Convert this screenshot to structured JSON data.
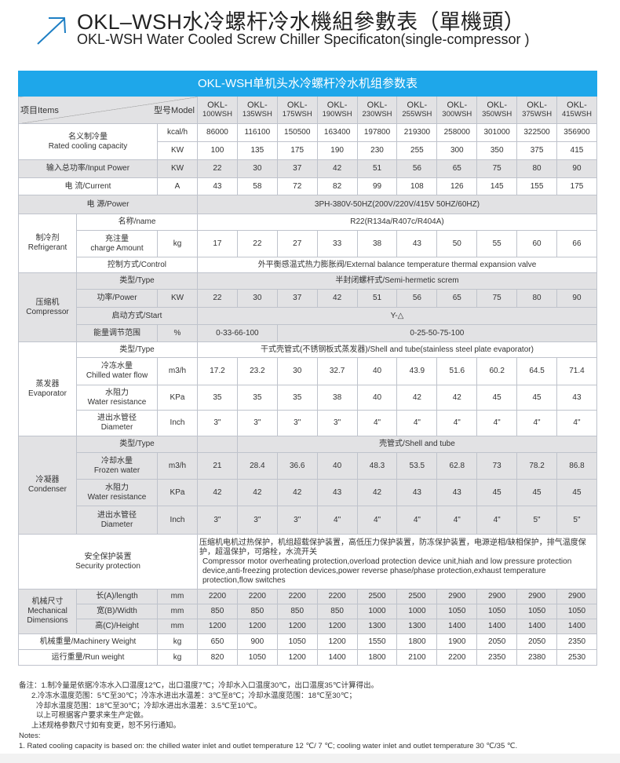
{
  "header": {
    "title_cn": "OKL–WSH水冷螺杆冷水機組參數表（單機頭）",
    "title_en": "OKL-WSH Water Cooled Screw Chiller Specificaton(single-compressor )",
    "accent": "#1e7fc4"
  },
  "table": {
    "title": "OKL-WSH单机头水冷螺杆冷水机组参数表",
    "title_bg": "#1ea7ea",
    "items_label": "项目Items",
    "model_label": "型号Model",
    "models": [
      [
        "OKL-",
        "100WSH"
      ],
      [
        "OKL-",
        "135WSH"
      ],
      [
        "OKL-",
        "175WSH"
      ],
      [
        "OKL-",
        "190WSH"
      ],
      [
        "OKL-",
        "230WSH"
      ],
      [
        "OKL-",
        "255WSH"
      ],
      [
        "OKL-",
        "300WSH"
      ],
      [
        "OKL-",
        "350WSH"
      ],
      [
        "OKL-",
        "375WSH"
      ],
      [
        "OKL-",
        "415WSH"
      ]
    ],
    "cooling": {
      "label_cn": "名义制冷量",
      "label_en": "Rated cooling capacity",
      "unit1": "kcal/h",
      "values1": [
        "86000",
        "116100",
        "150500",
        "163400",
        "197800",
        "219300",
        "258000",
        "301000",
        "322500",
        "356900"
      ],
      "unit2": "KW",
      "values2": [
        "100",
        "135",
        "175",
        "190",
        "230",
        "255",
        "300",
        "350",
        "375",
        "415"
      ]
    },
    "input_power": {
      "label": "输入总功率/Input Power",
      "unit": "KW",
      "values": [
        "22",
        "30",
        "37",
        "42",
        "51",
        "56",
        "65",
        "75",
        "80",
        "90"
      ]
    },
    "current": {
      "label": "电  流/Current",
      "unit": "A",
      "values": [
        "43",
        "58",
        "72",
        "82",
        "99",
        "108",
        "126",
        "145",
        "155",
        "175"
      ]
    },
    "power": {
      "label": "电      源/Power",
      "value": "3PH-380V-50HZ(200V/220V/415V   50HZ/60HZ)"
    },
    "refrigerant": {
      "group_cn": "制冷剂",
      "group_en": "Refrigerant",
      "name_label": "名称/name",
      "name_value": "R22(R134a/R407c/R404A)",
      "charge_cn": "充注量",
      "charge_en": "charge Amount",
      "charge_unit": "kg",
      "charge_values": [
        "17",
        "22",
        "27",
        "33",
        "38",
        "43",
        "50",
        "55",
        "60",
        "66"
      ],
      "control_label": "控制方式/Control",
      "control_value": "外平衡感温式热力膨胀阀/External balance temperature thermal expansion valve"
    },
    "compressor": {
      "group_cn": "压缩机",
      "group_en": "Compressor",
      "type_label": "类型/Type",
      "type_value": "半封闭螺杆式/Semi-hermetic screm",
      "power_label": "功率/Power",
      "power_unit": "KW",
      "power_values": [
        "22",
        "30",
        "37",
        "42",
        "51",
        "56",
        "65",
        "75",
        "80",
        "90"
      ],
      "start_label": "启动方式/Start",
      "start_value": "Y-△",
      "energy_label": "能量调节范围",
      "energy_unit": "%",
      "energy_value1": "0-33-66-100",
      "energy_value2": "0-25-50-75-100"
    },
    "evaporator": {
      "group_cn": "蒸发器",
      "group_en": "Evaporator",
      "type_label": "类型/Type",
      "type_value": "干式壳管式(不锈钢板式蒸发器)/Shell and tube(stainless steel plate evaporator)",
      "flow_cn": "冷冻水量",
      "flow_en": "Chilled water flow",
      "flow_unit": "m3/h",
      "flow_values": [
        "17.2",
        "23.2",
        "30",
        "32.7",
        "40",
        "43.9",
        "51.6",
        "60.2",
        "64.5",
        "71.4"
      ],
      "res_cn": "水阻力",
      "res_en": "Water resistance",
      "res_unit": "KPa",
      "res_values": [
        "35",
        "35",
        "35",
        "38",
        "40",
        "42",
        "42",
        "45",
        "45",
        "43"
      ],
      "dia_cn": "进出水管径",
      "dia_en": "Diameter",
      "dia_unit": "Inch",
      "dia_values": [
        "3\"",
        "3\"",
        "3\"",
        "3\"",
        "4\"",
        "4\"",
        "4\"",
        "4\"",
        "4\"",
        "4\""
      ]
    },
    "condenser": {
      "group_cn": "冷凝器",
      "group_en": "Condenser",
      "type_label": "类型/Type",
      "type_value": "壳管式/Shell and tube",
      "flow_cn": "冷却水量",
      "flow_en": "Frozen water",
      "flow_unit": "m3/h",
      "flow_values": [
        "21",
        "28.4",
        "36.6",
        "40",
        "48.3",
        "53.5",
        "62.8",
        "73",
        "78.2",
        "86.8"
      ],
      "res_cn": "水阻力",
      "res_en": "Water resistance",
      "res_unit": "KPa",
      "res_values": [
        "42",
        "42",
        "42",
        "43",
        "42",
        "43",
        "43",
        "45",
        "45",
        "45"
      ],
      "dia_cn": "进出水管径",
      "dia_en": "Diameter",
      "dia_unit": "Inch",
      "dia_values": [
        "3\"",
        "3\"",
        "3\"",
        "4\"",
        "4\"",
        "4\"",
        "4\"",
        "4\"",
        "5\"",
        "5\""
      ]
    },
    "security": {
      "label_cn": "安全保护装置",
      "label_en": "Security protection",
      "text_cn": "压缩机电机过热保护，机组超载保护装置，高低压力保护装置，防冻保护装置，电源逆相/缺相保护，排气温度保护，超温保护，可熔栓，水流开关",
      "text_en": "Compressor motor overheating protection,overload protection device unit,hiah and low pressure protection device,anti-freezing protection devices,power reverse phase/phase protection,exhaust temperature protection,flow switches"
    },
    "dimensions": {
      "group_cn": "机械尺寸",
      "group_en1": "Mechanical",
      "group_en2": "Dimensions",
      "length_label": "长(A)/length",
      "width_label": "宽(B)/Width",
      "height_label": "高(C)/Height",
      "unit": "mm",
      "length_values": [
        "2200",
        "2200",
        "2200",
        "2200",
        "2500",
        "2500",
        "2900",
        "2900",
        "2900",
        "2900"
      ],
      "width_values": [
        "850",
        "850",
        "850",
        "850",
        "1000",
        "1000",
        "1050",
        "1050",
        "1050",
        "1050"
      ],
      "height_values": [
        "1200",
        "1200",
        "1200",
        "1200",
        "1300",
        "1300",
        "1400",
        "1400",
        "1400",
        "1400"
      ]
    },
    "machinery_weight": {
      "label": "机械重量/Machinery Weight",
      "unit": "kg",
      "values": [
        "650",
        "900",
        "1050",
        "1200",
        "1550",
        "1800",
        "1900",
        "2050",
        "2050",
        "2350"
      ]
    },
    "run_weight": {
      "label": "运行重量/Run weight",
      "unit": "kg",
      "values": [
        "820",
        "1050",
        "1200",
        "1400",
        "1800",
        "2100",
        "2200",
        "2350",
        "2380",
        "2530"
      ]
    }
  },
  "notes": {
    "lines_cn": [
      "备注：1.制冷量是依据冷冻水入口温度12℃，出口温度7℃；冷却水入口温度30℃，出口温度35℃计算得出。",
      "2.冷冻水温度范围：5℃至30℃；冷冻水进出水温差：3℃至8℃；冷却水温度范围：18℃至30℃；",
      "冷却水温度范围：18℃至30℃；冷却水进出水温差：3.5℃至10℃。",
      "以上可根据客户要求来生产定做。",
      "上述规格参数尺寸如有变更，恕不另行通知。"
    ],
    "notes_label": "Notes:",
    "note1_en": "1. Rated cooling capacity is based on: the chilled water inlet and outlet temperature 12 ℃/ 7 ℃; cooling water inlet and outlet temperature 30 ℃/35 ℃."
  }
}
